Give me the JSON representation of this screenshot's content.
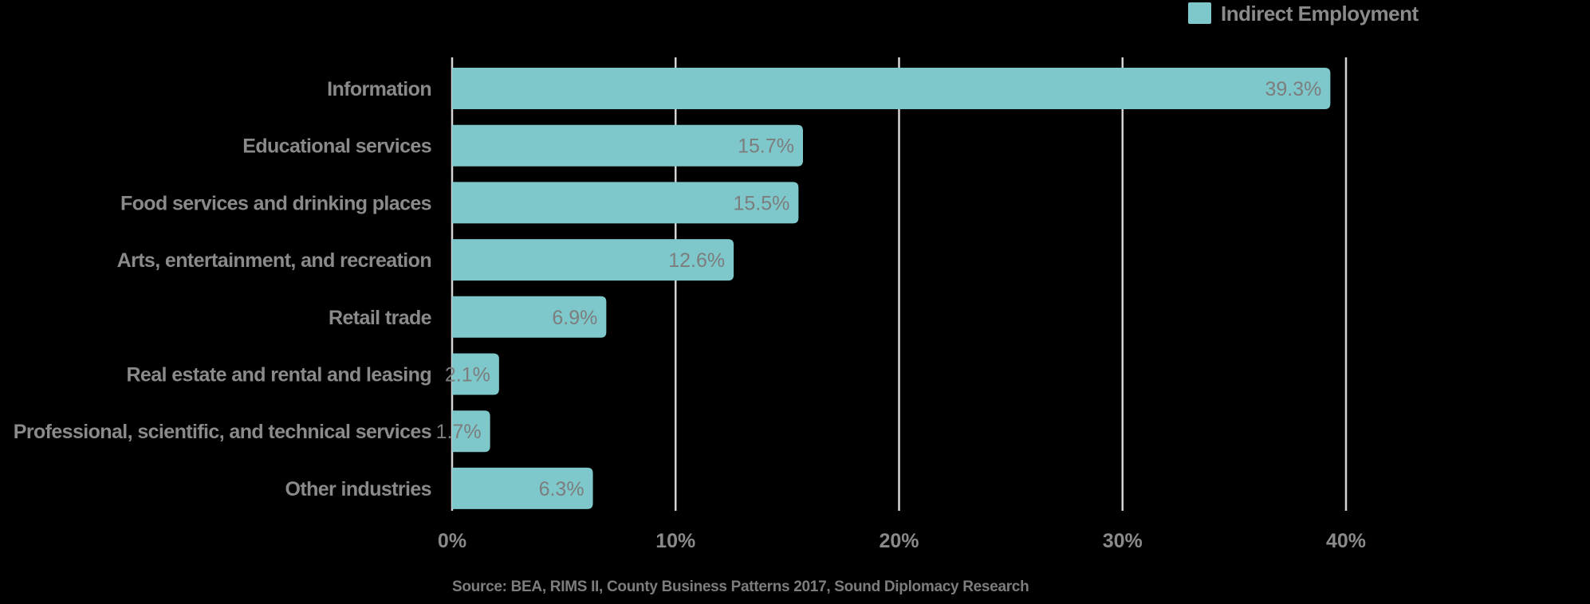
{
  "chart_data": {
    "type": "bar",
    "orientation": "horizontal",
    "title": "",
    "xlabel": "",
    "ylabel": "",
    "categories": [
      "Information",
      "Educational services",
      "Food services and drinking places",
      "Arts, entertainment, and recreation",
      "Retail trade",
      "Real estate and rental and leasing",
      "Professional, scientific, and technical services",
      "Other industries"
    ],
    "series": [
      {
        "name": "Indirect Employment",
        "color": "#7ec8cb",
        "values": [
          39.3,
          15.7,
          15.5,
          12.6,
          6.9,
          2.1,
          1.7,
          6.3
        ],
        "value_labels": [
          "39.3%",
          "15.7%",
          "15.5%",
          "12.6%",
          "6.9%",
          "2.1%",
          "1.7%",
          "6.3%"
        ]
      }
    ],
    "xlim": [
      0,
      40
    ],
    "xticks": [
      0,
      10,
      20,
      30,
      40
    ],
    "xtick_labels": [
      "0%",
      "10%",
      "20%",
      "30%",
      "40%"
    ],
    "grid": true,
    "legend": {
      "position": "top-right",
      "entries": [
        "Indirect Employment"
      ]
    },
    "source": "Source: BEA, RIMS II, County Business Patterns 2017, Sound Diplomacy Research"
  },
  "colors": {
    "background": "#000000",
    "bar": "#7ec8cb",
    "gridline": "#d4d4d4",
    "text": "#8a8a8a",
    "value_text": "#7d7d7d"
  }
}
